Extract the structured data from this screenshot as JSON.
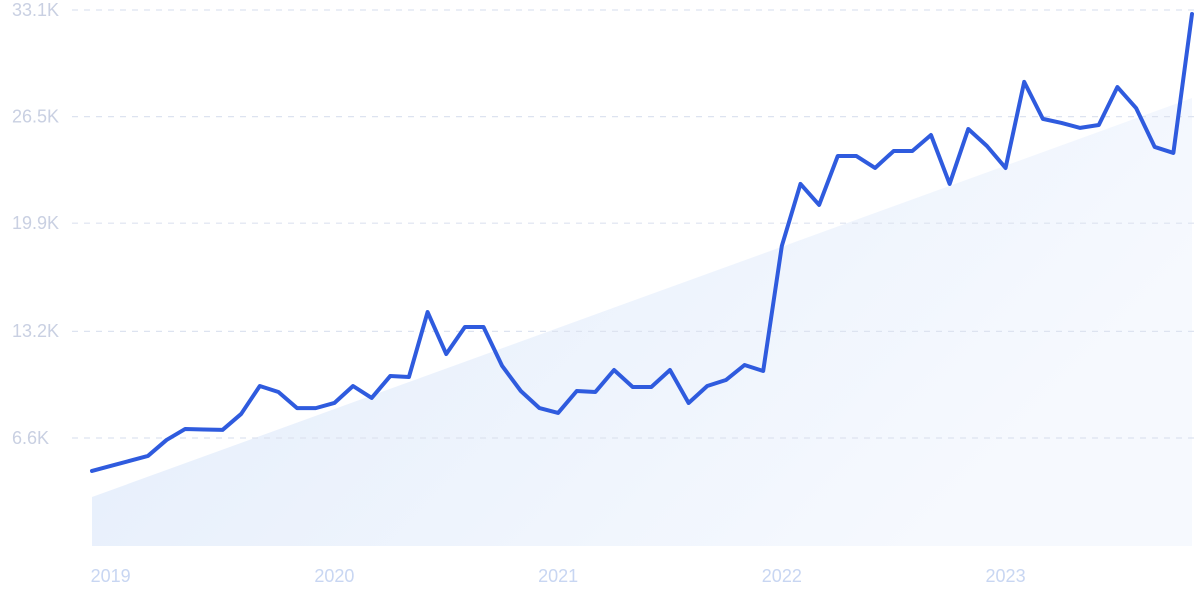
{
  "chart_data": {
    "type": "line",
    "categories": [
      null,
      "2019",
      null,
      null,
      null,
      null,
      null,
      null,
      null,
      null,
      null,
      null,
      null,
      "2020",
      null,
      null,
      null,
      null,
      null,
      null,
      null,
      null,
      null,
      null,
      null,
      "2021",
      null,
      null,
      null,
      null,
      null,
      null,
      null,
      null,
      null,
      null,
      null,
      "2022",
      null,
      null,
      null,
      null,
      null,
      null,
      null,
      null,
      null,
      null,
      null,
      "2023",
      null,
      null,
      null,
      null,
      null,
      null,
      null,
      null,
      null,
      null
    ],
    "values": [
      4560,
      4870,
      5180,
      5490,
      6480,
      7160,
      7130,
      7100,
      8090,
      9820,
      9450,
      8450,
      8450,
      8770,
      9820,
      9080,
      10440,
      10380,
      14400,
      11800,
      13470,
      13470,
      11060,
      9510,
      8450,
      8150,
      9510,
      9450,
      10810,
      9760,
      9760,
      10810,
      8770,
      9820,
      10190,
      11120,
      10750,
      18490,
      22330,
      21030,
      24060,
      24060,
      23320,
      24370,
      24370,
      25360,
      22330,
      25730,
      24680,
      23320,
      28650,
      26360,
      26110,
      25800,
      25980,
      28330,
      27030,
      24620,
      24250,
      32850
    ],
    "color": "#2f5bde",
    "ylim": [
      0,
      33100
    ],
    "yticks": [
      {
        "value": 6600,
        "label": "6.6K"
      },
      {
        "value": 13200,
        "label": "13.2K"
      },
      {
        "value": 19900,
        "label": "19.9K"
      },
      {
        "value": 26500,
        "label": "26.5K"
      },
      {
        "value": 33100,
        "label": "33.1K"
      }
    ],
    "grid": true
  }
}
